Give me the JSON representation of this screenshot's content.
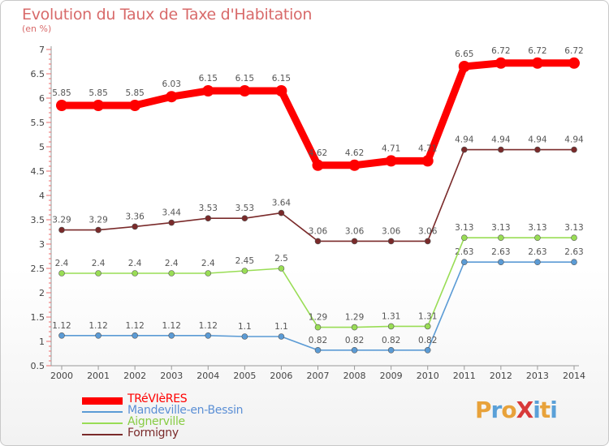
{
  "chart_data": {
    "type": "line",
    "title": "Evolution du Taux de Taxe d'Habitation",
    "ylabel": "(en %)",
    "x": [
      "2000",
      "2001",
      "2002",
      "2003",
      "2004",
      "2005",
      "2006",
      "2007",
      "2008",
      "2009",
      "2010",
      "2011",
      "2012",
      "2013",
      "2014"
    ],
    "ylim": [
      0.5,
      7
    ],
    "yticks": [
      "0.5",
      "1",
      "1.5",
      "2",
      "2.5",
      "3",
      "3.5",
      "4",
      "4.5",
      "5",
      "5.5",
      "6",
      "6.5",
      "7"
    ],
    "grid": false,
    "legend_position": "bottom-left",
    "series": [
      {
        "name": "TRéVIèRES",
        "color": "#ff0000",
        "values": [
          5.85,
          5.85,
          5.85,
          6.03,
          6.15,
          6.15,
          6.15,
          4.62,
          4.62,
          4.71,
          4.71,
          6.65,
          6.72,
          6.72,
          6.72
        ],
        "labels": [
          "5.85",
          "5.85",
          "5.85",
          "6.03",
          "6.15",
          "6.15",
          "6.15",
          "4.62",
          "4.62",
          "4.71",
          "4.71",
          "6.65",
          "6.72",
          "6.72",
          "6.72"
        ]
      },
      {
        "name": "Mandeville-en-Bessin",
        "color": "#5b9bd5",
        "values": [
          1.12,
          1.12,
          1.12,
          1.12,
          1.12,
          1.1,
          1.1,
          0.82,
          0.82,
          0.82,
          0.82,
          2.63,
          2.63,
          2.63,
          2.63
        ],
        "labels": [
          "1.12",
          "1.12",
          "1.12",
          "1.12",
          "1.12",
          "1.1",
          "1.1",
          "0.82",
          "0.82",
          "0.82",
          "0.82",
          "2.63",
          "2.63",
          "2.63",
          "2.63"
        ]
      },
      {
        "name": "Aignerville",
        "color": "#99dd55",
        "values": [
          2.4,
          2.4,
          2.4,
          2.4,
          2.4,
          2.45,
          2.5,
          1.29,
          1.29,
          1.31,
          1.31,
          3.13,
          3.13,
          3.13,
          3.13
        ],
        "labels": [
          "2.4",
          "2.4",
          "2.4",
          "2.4",
          "2.4",
          "2.45",
          "2.5",
          "1.29",
          "1.29",
          "1.31",
          "1.31",
          "3.13",
          "3.13",
          "3.13",
          "3.13"
        ]
      },
      {
        "name": "Formigny",
        "color": "#7a2a2a",
        "values": [
          3.29,
          3.29,
          3.36,
          3.44,
          3.53,
          3.53,
          3.64,
          3.06,
          3.06,
          3.06,
          3.06,
          4.94,
          4.94,
          4.94,
          4.94
        ],
        "labels": [
          "3.29",
          "3.29",
          "3.36",
          "3.44",
          "3.53",
          "3.53",
          "3.64",
          "3.06",
          "3.06",
          "3.06",
          "3.06",
          "4.94",
          "4.94",
          "4.94",
          "4.94"
        ]
      }
    ]
  },
  "logo": {
    "text": "ProXiti",
    "colors": [
      "#e8a23a",
      "#5aa0d8",
      "#e8a23a",
      "#d83a3a",
      "#5aa0d8",
      "#e8a23a",
      "#5aa0d8"
    ]
  }
}
